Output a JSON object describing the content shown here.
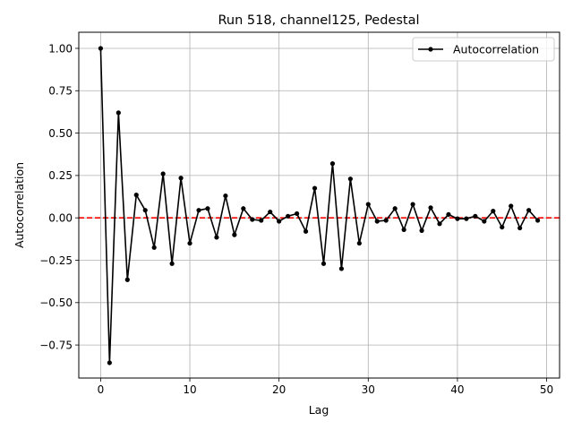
{
  "chart_data": {
    "type": "line",
    "title": "Run 518, channel125, Pedestal",
    "xlabel": "Lag",
    "ylabel": "Autocorrelation",
    "xlim": [
      -2.45,
      51.45
    ],
    "ylim": [
      -0.945,
      1.095
    ],
    "x_ticks": [
      0,
      10,
      20,
      30,
      40,
      50
    ],
    "y_ticks": [
      -0.75,
      -0.5,
      -0.25,
      0.0,
      0.25,
      0.5,
      0.75,
      1.0
    ],
    "x_tick_labels": [
      "0",
      "10",
      "20",
      "30",
      "40",
      "50"
    ],
    "y_tick_labels": [
      "−0.75",
      "−0.50",
      "−0.25",
      "0.00",
      "0.25",
      "0.50",
      "0.75",
      "1.00"
    ],
    "grid": true,
    "legend_position": "top-right",
    "reference_line": {
      "y": 0,
      "color": "#ff0000",
      "style": "dashed"
    },
    "series": [
      {
        "name": "Autocorrelation",
        "color": "#000000",
        "marker": "circle",
        "x": [
          0,
          1,
          2,
          3,
          4,
          5,
          6,
          7,
          8,
          9,
          10,
          11,
          12,
          13,
          14,
          15,
          16,
          17,
          18,
          19,
          20,
          21,
          22,
          23,
          24,
          25,
          26,
          27,
          28,
          29,
          30,
          31,
          32,
          33,
          34,
          35,
          36,
          37,
          38,
          39,
          40,
          41,
          42,
          43,
          44,
          45,
          46,
          47,
          48,
          49
        ],
        "values": [
          1.0,
          -0.855,
          0.62,
          -0.365,
          0.135,
          0.045,
          -0.175,
          0.26,
          -0.27,
          0.235,
          -0.15,
          0.045,
          0.055,
          -0.115,
          0.13,
          -0.1,
          0.055,
          -0.01,
          -0.015,
          0.035,
          -0.02,
          0.01,
          0.025,
          -0.08,
          0.175,
          -0.27,
          0.32,
          -0.3,
          0.23,
          -0.15,
          0.08,
          -0.02,
          -0.015,
          0.055,
          -0.07,
          0.08,
          -0.075,
          0.06,
          -0.035,
          0.02,
          -0.005,
          -0.005,
          0.01,
          -0.02,
          0.04,
          -0.055,
          0.07,
          -0.06,
          0.045,
          -0.015
        ]
      }
    ]
  }
}
